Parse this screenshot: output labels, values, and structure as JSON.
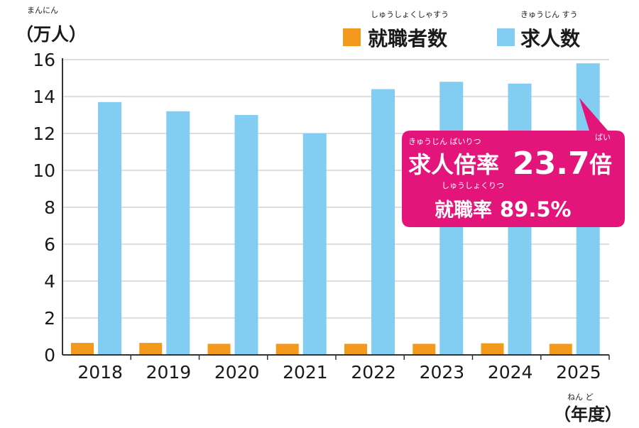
{
  "chart_data": {
    "type": "bar",
    "categories": [
      "2018",
      "2019",
      "2020",
      "2021",
      "2022",
      "2023",
      "2024",
      "2025"
    ],
    "series": [
      {
        "name": "就職者数",
        "ruby": "しゅうしょくしゃすう",
        "color": "#f39a1e",
        "values": [
          0.65,
          0.65,
          0.6,
          0.6,
          0.6,
          0.6,
          0.63,
          0.6
        ]
      },
      {
        "name": "求人数",
        "ruby": "きゅうじん すう",
        "color": "#84cdf2",
        "values": [
          13.7,
          13.2,
          13.0,
          12.0,
          14.4,
          14.8,
          14.7,
          15.8
        ]
      }
    ],
    "ylim": [
      0,
      16
    ],
    "yticks": [
      "0",
      "2",
      "4",
      "6",
      "8",
      "10",
      "12",
      "14",
      "16"
    ],
    "ylabel": {
      "ruby": "まんにん",
      "text": "（万人）"
    },
    "xlabel": {
      "ruby": "ねん ど",
      "text": "（年度）"
    },
    "grid": true,
    "legend_position": "top-right",
    "callout": {
      "color": "#e4157a",
      "line1_ruby_a": "きゅうじん ばいりつ",
      "line1_label": "求人倍率",
      "line1_value": "23.7",
      "line1_unit": "倍",
      "line1_ruby_b": "ばい",
      "line2_ruby": "しゅうしょくりつ",
      "line2_label": "就職率",
      "line2_value": "89.5%"
    }
  }
}
